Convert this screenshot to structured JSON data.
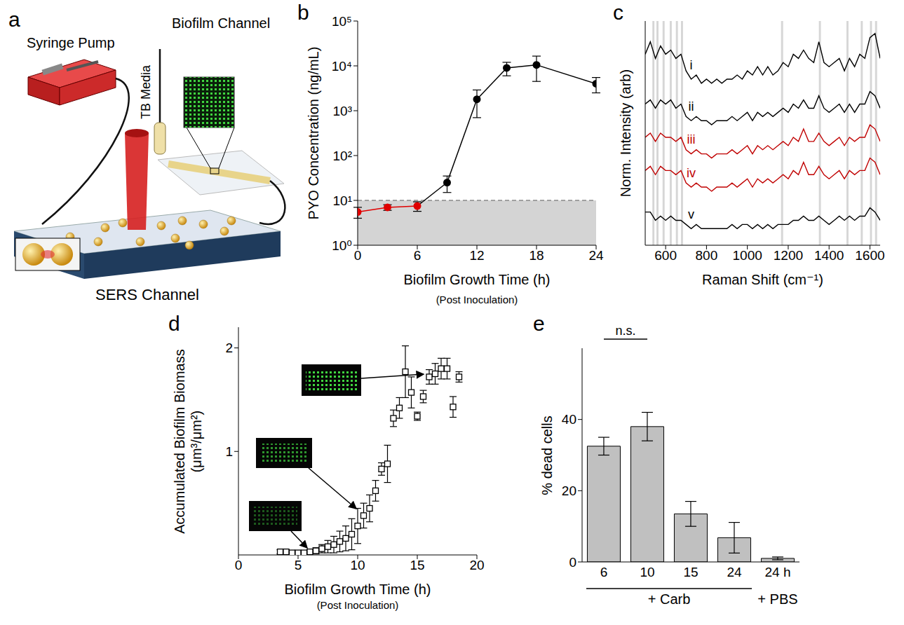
{
  "diagram": {
    "panel": "a",
    "labels": {
      "pump": "Syringe Pump",
      "media": "TB Media",
      "biofilm": "Biofilm Channel",
      "sers": "SERS Channel"
    }
  },
  "chart_data": [
    {
      "panel": "b",
      "type": "line",
      "xlabel": "Biofilm Growth Time (h)",
      "xlabel_note": "(Post Inoculation)",
      "ylabel": "PYO Concentration (ng/mL)",
      "x": [
        0,
        3,
        6,
        9,
        12,
        15,
        18,
        24
      ],
      "values": [
        5.5,
        7,
        7.5,
        25,
        1800,
        9000,
        10500,
        4000
      ],
      "errors": [
        1.5,
        1,
        1.8,
        10,
        1100,
        3000,
        6000,
        1500
      ],
      "colors": [
        "#e00000",
        "#e00000",
        "#e00000",
        "#000000",
        "#000000",
        "#000000",
        "#000000",
        "#000000"
      ],
      "marker": "circle",
      "detection_limit": 10,
      "log": "y",
      "xlim": [
        0,
        24
      ],
      "xticks": [
        0,
        6,
        12,
        18,
        24
      ],
      "ylim": [
        1,
        100000
      ],
      "yticks": [
        {
          "value": 1,
          "label": "10⁰"
        },
        {
          "value": 10,
          "label": "10¹"
        },
        {
          "value": 100,
          "label": "10²"
        },
        {
          "value": 1000,
          "label": "10³"
        },
        {
          "value": 10000,
          "label": "10⁴"
        },
        {
          "value": 100000,
          "label": "10⁵"
        }
      ]
    },
    {
      "panel": "c",
      "type": "line",
      "xlabel": "Raman Shift (cm⁻¹)",
      "ylabel": "Norm. Intensity (arb)",
      "x": [
        500,
        525,
        550,
        575,
        600,
        625,
        650,
        675,
        700,
        725,
        750,
        775,
        800,
        825,
        850,
        875,
        900,
        925,
        950,
        975,
        1000,
        1025,
        1050,
        1075,
        1100,
        1125,
        1150,
        1175,
        1200,
        1225,
        1250,
        1275,
        1300,
        1325,
        1350,
        1375,
        1400,
        1425,
        1450,
        1475,
        1500,
        1525,
        1550,
        1575,
        1600,
        1625,
        1650
      ],
      "series": [
        {
          "name": "i",
          "color": "#000000",
          "values": [
            4.6,
            4.9,
            4.5,
            4.8,
            4.6,
            4.7,
            4.5,
            4.6,
            4.2,
            4.0,
            4.1,
            3.9,
            4.0,
            3.9,
            4.0,
            3.9,
            4.0,
            4.0,
            4.1,
            4.0,
            4.2,
            4.1,
            4.3,
            4.1,
            4.3,
            4.1,
            4.2,
            4.4,
            4.3,
            4.6,
            4.5,
            4.7,
            4.5,
            4.4,
            4.9,
            4.4,
            4.3,
            4.4,
            4.5,
            4.2,
            4.5,
            4.3,
            4.6,
            4.5,
            5.0,
            5.1,
            4.5
          ]
        },
        {
          "name": "ii",
          "color": "#000000",
          "values": [
            3.4,
            3.5,
            3.3,
            3.5,
            3.4,
            3.5,
            3.3,
            3.4,
            3.1,
            3.0,
            3.1,
            3.0,
            3.0,
            2.9,
            3.0,
            3.0,
            3.0,
            3.1,
            3.0,
            3.1,
            3.2,
            3.0,
            3.2,
            3.1,
            3.2,
            3.1,
            3.2,
            3.3,
            3.2,
            3.4,
            3.3,
            3.5,
            3.3,
            3.3,
            3.6,
            3.3,
            3.2,
            3.3,
            3.4,
            3.2,
            3.4,
            3.2,
            3.4,
            3.4,
            3.7,
            3.6,
            3.3
          ]
        },
        {
          "name": "iii",
          "color": "#c00000",
          "values": [
            2.6,
            2.7,
            2.5,
            2.7,
            2.6,
            2.6,
            2.5,
            2.6,
            2.3,
            2.2,
            2.3,
            2.2,
            2.2,
            2.1,
            2.2,
            2.2,
            2.2,
            2.3,
            2.2,
            2.3,
            2.4,
            2.2,
            2.4,
            2.3,
            2.4,
            2.3,
            2.4,
            2.5,
            2.4,
            2.6,
            2.5,
            2.8,
            2.5,
            2.5,
            2.7,
            2.5,
            2.4,
            2.5,
            2.6,
            2.4,
            2.6,
            2.5,
            2.6,
            2.6,
            2.9,
            2.8,
            2.5
          ]
        },
        {
          "name": "iv",
          "color": "#c00000",
          "values": [
            1.8,
            1.9,
            1.7,
            1.9,
            1.8,
            1.8,
            1.7,
            1.8,
            1.5,
            1.4,
            1.5,
            1.4,
            1.4,
            1.3,
            1.4,
            1.4,
            1.4,
            1.5,
            1.4,
            1.5,
            1.6,
            1.4,
            1.6,
            1.5,
            1.6,
            1.5,
            1.6,
            1.7,
            1.6,
            1.8,
            1.7,
            2.0,
            1.7,
            1.7,
            1.9,
            1.7,
            1.6,
            1.7,
            1.8,
            1.6,
            1.8,
            1.7,
            1.8,
            1.8,
            2.1,
            2.0,
            1.7
          ]
        },
        {
          "name": "v",
          "color": "#000000",
          "values": [
            0.8,
            0.8,
            0.6,
            0.7,
            0.6,
            0.7,
            0.6,
            0.6,
            0.5,
            0.4,
            0.5,
            0.4,
            0.4,
            0.4,
            0.4,
            0.4,
            0.4,
            0.5,
            0.4,
            0.5,
            0.5,
            0.4,
            0.5,
            0.4,
            0.5,
            0.4,
            0.5,
            0.5,
            0.5,
            0.6,
            0.6,
            0.7,
            0.6,
            0.6,
            0.7,
            0.6,
            0.5,
            0.6,
            0.7,
            0.6,
            0.7,
            0.6,
            0.7,
            0.7,
            0.9,
            0.8,
            0.6
          ]
        }
      ],
      "bands": [
        540,
        560,
        590,
        625,
        655,
        680,
        1170,
        1355,
        1490,
        1560,
        1605,
        1630
      ],
      "xlim": [
        500,
        1650
      ],
      "xticks": [
        600,
        800,
        1000,
        1200,
        1400,
        1600
      ],
      "ylim": [
        0,
        5.4
      ],
      "tick_labels": "x"
    },
    {
      "panel": "d",
      "type": "scatter",
      "xlabel": "Biofilm Growth Time (h)",
      "xlabel_note": "(Post Inoculation)",
      "ylabel": "Accumulated Biofilm Biomass (μm³/μm²)",
      "x": [
        3.5,
        4,
        4.5,
        5,
        5.5,
        6,
        6.5,
        7,
        7.5,
        8,
        8.5,
        9,
        9.5,
        10,
        10.5,
        11,
        11.5,
        12,
        12.5,
        13,
        13.5,
        14,
        14.5,
        15,
        15.5,
        16,
        16.5,
        17,
        17.5,
        18,
        18.5
      ],
      "values": [
        0.03,
        0.03,
        0.02,
        0.02,
        0.02,
        0.03,
        0.04,
        0.06,
        0.08,
        0.1,
        0.13,
        0.16,
        0.2,
        0.28,
        0.38,
        0.45,
        0.62,
        0.83,
        0.88,
        1.32,
        1.42,
        1.77,
        1.57,
        1.34,
        1.53,
        1.72,
        1.75,
        1.8,
        1.8,
        1.43,
        1.72
      ],
      "errors": [
        0.02,
        0.02,
        0.01,
        0.01,
        0.01,
        0.02,
        0.03,
        0.04,
        0.06,
        0.08,
        0.1,
        0.12,
        0.15,
        0.17,
        0.12,
        0.13,
        0.1,
        0.06,
        0.18,
        0.08,
        0.1,
        0.25,
        0.15,
        0.04,
        0.06,
        0.07,
        0.1,
        0.1,
        0.1,
        0.1,
        0.05
      ],
      "marker": "square",
      "color": "#000000",
      "xlim": [
        0,
        20
      ],
      "xticks": [
        0,
        5,
        10,
        15,
        20
      ],
      "ylim": [
        0,
        2.2
      ],
      "yticks": [
        1,
        2
      ]
    },
    {
      "panel": "e",
      "type": "bar",
      "ylabel": "% dead cells",
      "categories": [
        "6",
        "10",
        "15",
        "24",
        "24 h"
      ],
      "values": [
        32.5,
        38,
        13.5,
        6.8,
        1
      ],
      "errors": [
        2.5,
        4,
        3.5,
        4.3,
        0.4
      ],
      "color": "#c0c0c0",
      "ylim": [
        0,
        60
      ],
      "yticks": [
        0,
        20,
        40
      ],
      "annotations": [
        {
          "text": "n.s.",
          "from": "6",
          "to": "10"
        }
      ],
      "groups": [
        {
          "label": "+ Carb",
          "from": "6",
          "to": "24"
        },
        {
          "label": "+ PBS",
          "from": "24 h",
          "to": "24 h"
        }
      ]
    }
  ]
}
